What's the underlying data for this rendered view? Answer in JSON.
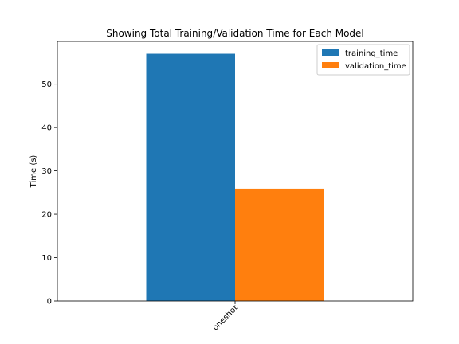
{
  "chart_data": {
    "type": "bar",
    "title": "Showing Total Training/Validation Time for Each Model",
    "xlabel": "",
    "ylabel": "Time (s)",
    "categories": [
      "oneshot"
    ],
    "series": [
      {
        "name": "training_time",
        "values": [
          57.0
        ],
        "color": "#1f77b4"
      },
      {
        "name": "validation_time",
        "values": [
          25.9
        ],
        "color": "#ff7f0e"
      }
    ],
    "ylim": [
      0,
      59.85
    ],
    "yticks": [
      0,
      10,
      20,
      30,
      40,
      50
    ],
    "legend_position": "top-right",
    "grid": false
  }
}
